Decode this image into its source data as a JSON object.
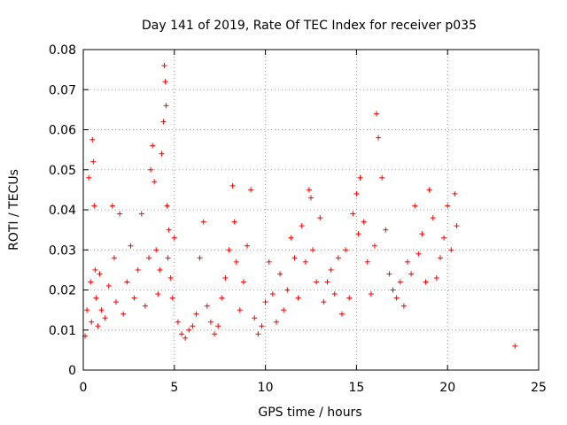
{
  "chart_data": {
    "type": "scatter",
    "title": "Day 141 of 2019, Rate Of TEC Index for receiver p035",
    "xlabel": "GPS time / hours",
    "ylabel": "ROTI / TECUs",
    "xlim": [
      0,
      25
    ],
    "ylim": [
      0,
      0.08
    ],
    "x_ticks": [
      "0",
      "5",
      "10",
      "15",
      "20",
      "25"
    ],
    "y_ticks": [
      "0",
      "0.01",
      "0.02",
      "0.03",
      "0.04",
      "0.05",
      "0.06",
      "0.07",
      "0.08"
    ],
    "grid": true,
    "marker": "+",
    "marker_color": "#ff0000",
    "series": [
      {
        "name": "p035",
        "x": [
          0.1,
          0.2,
          0.3,
          0.4,
          0.45,
          0.5,
          0.55,
          0.6,
          0.65,
          0.7,
          0.8,
          0.9,
          1.0,
          1.2,
          1.4,
          1.6,
          1.7,
          1.8,
          2.0,
          2.2,
          2.4,
          2.6,
          2.8,
          3.0,
          3.2,
          3.4,
          3.6,
          3.7,
          3.8,
          3.9,
          4.0,
          4.1,
          4.2,
          4.3,
          4.4,
          4.45,
          4.5,
          4.55,
          4.6,
          4.65,
          4.7,
          4.8,
          4.9,
          5.0,
          5.2,
          5.4,
          5.6,
          5.8,
          6.0,
          6.2,
          6.4,
          6.6,
          6.8,
          7.0,
          7.2,
          7.4,
          7.6,
          7.8,
          8.0,
          8.2,
          8.3,
          8.4,
          8.6,
          8.8,
          9.0,
          9.2,
          9.4,
          9.6,
          9.8,
          10.0,
          10.2,
          10.4,
          10.6,
          10.8,
          11.0,
          11.2,
          11.4,
          11.6,
          11.8,
          12.0,
          12.2,
          12.4,
          12.5,
          12.6,
          12.8,
          13.0,
          13.2,
          13.4,
          13.6,
          13.8,
          14.0,
          14.2,
          14.4,
          14.6,
          14.8,
          15.0,
          15.1,
          15.2,
          15.4,
          15.6,
          15.8,
          16.0,
          16.1,
          16.2,
          16.4,
          16.6,
          16.8,
          17.0,
          17.2,
          17.4,
          17.6,
          17.8,
          18.0,
          18.2,
          18.4,
          18.6,
          18.8,
          19.0,
          19.2,
          19.4,
          19.6,
          19.8,
          20.0,
          20.2,
          20.4,
          20.5,
          23.7
        ],
        "values": [
          0.0085,
          0.015,
          0.048,
          0.022,
          0.012,
          0.0575,
          0.052,
          0.041,
          0.025,
          0.018,
          0.011,
          0.024,
          0.015,
          0.013,
          0.021,
          0.041,
          0.028,
          0.017,
          0.039,
          0.014,
          0.022,
          0.031,
          0.018,
          0.025,
          0.039,
          0.016,
          0.028,
          0.05,
          0.056,
          0.047,
          0.03,
          0.019,
          0.025,
          0.054,
          0.062,
          0.076,
          0.072,
          0.066,
          0.041,
          0.028,
          0.035,
          0.023,
          0.018,
          0.033,
          0.012,
          0.009,
          0.008,
          0.01,
          0.011,
          0.014,
          0.028,
          0.037,
          0.016,
          0.012,
          0.009,
          0.011,
          0.018,
          0.023,
          0.03,
          0.046,
          0.037,
          0.027,
          0.015,
          0.022,
          0.031,
          0.045,
          0.013,
          0.009,
          0.011,
          0.017,
          0.027,
          0.019,
          0.012,
          0.024,
          0.015,
          0.02,
          0.033,
          0.028,
          0.018,
          0.036,
          0.027,
          0.045,
          0.043,
          0.03,
          0.022,
          0.038,
          0.017,
          0.022,
          0.025,
          0.019,
          0.028,
          0.014,
          0.03,
          0.018,
          0.039,
          0.044,
          0.034,
          0.048,
          0.037,
          0.027,
          0.019,
          0.031,
          0.064,
          0.058,
          0.048,
          0.035,
          0.024,
          0.02,
          0.018,
          0.022,
          0.016,
          0.027,
          0.024,
          0.041,
          0.029,
          0.034,
          0.022,
          0.045,
          0.038,
          0.023,
          0.028,
          0.033,
          0.041,
          0.03,
          0.044,
          0.036,
          0.006
        ]
      }
    ]
  }
}
